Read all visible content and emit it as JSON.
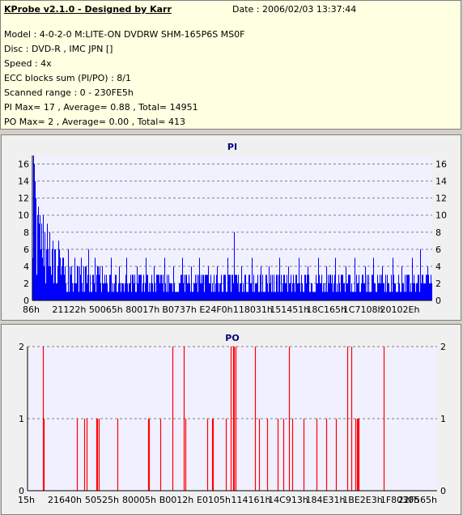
{
  "header": {
    "title": "KProbe v2.1.0 - Designed by Karr",
    "date": "Date : 2006/02/03 13:37:44",
    "lines": [
      "Model : 4-0-2-0 M:LITE-ON DVDRW SHM-165P6S MS0F",
      "Disc : DVD-R , IMC JPN []",
      "Speed : 4x",
      "ECC blocks sum (PI/PO) : 8/1",
      "Scanned range : 0 - 230FE5h",
      "PI Max= 17 , Average= 0.88 , Total= 14951",
      "PO Max= 2 , Average= 0.00 , Total= 413"
    ]
  },
  "colors": {
    "pi_bar": "#0000ff",
    "po_bar": "#ff0000",
    "plot_bg": "#f0f0ff",
    "title_color": "#000080",
    "grid": "#808080"
  },
  "chart_data": [
    {
      "type": "bar",
      "title": "PI",
      "x_ticks": [
        "86h",
        "21122h",
        "50065h",
        "80017h",
        "B0737h",
        "E24F0h",
        "118031h",
        "151451h",
        "18C165h",
        "1C7108h",
        "20102Eh"
      ],
      "y_ticks": [
        0,
        2,
        4,
        6,
        8,
        10,
        12,
        14,
        16
      ],
      "ylim": [
        0,
        17
      ],
      "xlim": [
        0,
        2297829
      ],
      "grid": true,
      "bands": [
        {
          "x0": 0,
          "x1": 45000,
          "ylow": 3,
          "yhigh": 10
        },
        {
          "x0": 45000,
          "x1": 180000,
          "ylow": 2,
          "yhigh": 6
        },
        {
          "x0": 180000,
          "x1": 390000,
          "ylow": 1,
          "yhigh": 4
        },
        {
          "x0": 390000,
          "x1": 1100000,
          "ylow": 1,
          "yhigh": 3
        },
        {
          "x0": 1100000,
          "x1": 2297829,
          "ylow": 1,
          "yhigh": 3
        }
      ],
      "spikes": [
        {
          "x": 2600,
          "y": 17
        },
        {
          "x": 9000,
          "y": 16
        },
        {
          "x": 14000,
          "y": 14
        },
        {
          "x": 20000,
          "y": 12
        },
        {
          "x": 26000,
          "y": 10
        },
        {
          "x": 33000,
          "y": 11
        },
        {
          "x": 52000,
          "y": 9
        },
        {
          "x": 60000,
          "y": 10
        },
        {
          "x": 72000,
          "y": 8
        },
        {
          "x": 84000,
          "y": 9
        },
        {
          "x": 100000,
          "y": 8
        },
        {
          "x": 115000,
          "y": 7
        },
        {
          "x": 130000,
          "y": 6
        },
        {
          "x": 150000,
          "y": 7
        },
        {
          "x": 175000,
          "y": 5
        },
        {
          "x": 205000,
          "y": 6
        },
        {
          "x": 240000,
          "y": 5
        },
        {
          "x": 280000,
          "y": 5
        },
        {
          "x": 320000,
          "y": 6
        },
        {
          "x": 360000,
          "y": 5
        },
        {
          "x": 400000,
          "y": 4
        },
        {
          "x": 450000,
          "y": 5
        },
        {
          "x": 500000,
          "y": 4
        },
        {
          "x": 540000,
          "y": 5
        },
        {
          "x": 600000,
          "y": 4
        },
        {
          "x": 650000,
          "y": 5
        },
        {
          "x": 700000,
          "y": 4
        },
        {
          "x": 760000,
          "y": 5
        },
        {
          "x": 810000,
          "y": 4
        },
        {
          "x": 860000,
          "y": 5
        },
        {
          "x": 910000,
          "y": 4
        },
        {
          "x": 960000,
          "y": 5
        },
        {
          "x": 1010000,
          "y": 4
        },
        {
          "x": 1060000,
          "y": 4
        },
        {
          "x": 1120000,
          "y": 5
        },
        {
          "x": 1160000,
          "y": 8
        },
        {
          "x": 1200000,
          "y": 4
        },
        {
          "x": 1260000,
          "y": 5
        },
        {
          "x": 1310000,
          "y": 4
        },
        {
          "x": 1360000,
          "y": 4
        },
        {
          "x": 1420000,
          "y": 5
        },
        {
          "x": 1470000,
          "y": 4
        },
        {
          "x": 1530000,
          "y": 5
        },
        {
          "x": 1580000,
          "y": 4
        },
        {
          "x": 1640000,
          "y": 5
        },
        {
          "x": 1690000,
          "y": 4
        },
        {
          "x": 1740000,
          "y": 5
        },
        {
          "x": 1800000,
          "y": 4
        },
        {
          "x": 1850000,
          "y": 5
        },
        {
          "x": 1910000,
          "y": 4
        },
        {
          "x": 1960000,
          "y": 5
        },
        {
          "x": 2010000,
          "y": 4
        },
        {
          "x": 2070000,
          "y": 5
        },
        {
          "x": 2120000,
          "y": 4
        },
        {
          "x": 2180000,
          "y": 5
        },
        {
          "x": 2230000,
          "y": 6
        },
        {
          "x": 2270000,
          "y": 4
        }
      ]
    },
    {
      "type": "bar",
      "title": "PO",
      "x_ticks": [
        "15h",
        "21640h",
        "50525h",
        "80005h",
        "B0012h",
        "E0105h",
        "114161h",
        "14C913h",
        "184E31h",
        "1BE2E3h",
        "1F8030h",
        "22F565h"
      ],
      "y_ticks": [
        0,
        1,
        2
      ],
      "ylim": [
        0,
        2
      ],
      "xlim": [
        0,
        2297829
      ],
      "grid": true,
      "points": [
        {
          "x": 88000,
          "y": 2
        },
        {
          "x": 90000,
          "y": 1
        },
        {
          "x": 276000,
          "y": 1
        },
        {
          "x": 320000,
          "y": 1
        },
        {
          "x": 330000,
          "y": 1
        },
        {
          "x": 386000,
          "y": 1
        },
        {
          "x": 392000,
          "y": 1
        },
        {
          "x": 398000,
          "y": 1
        },
        {
          "x": 502000,
          "y": 1
        },
        {
          "x": 676000,
          "y": 1
        },
        {
          "x": 683000,
          "y": 1
        },
        {
          "x": 746000,
          "y": 1
        },
        {
          "x": 811000,
          "y": 2
        },
        {
          "x": 877000,
          "y": 2
        },
        {
          "x": 884000,
          "y": 1
        },
        {
          "x": 1006000,
          "y": 1
        },
        {
          "x": 1034000,
          "y": 1
        },
        {
          "x": 1040000,
          "y": 1
        },
        {
          "x": 1111000,
          "y": 1
        },
        {
          "x": 1138000,
          "y": 2
        },
        {
          "x": 1152000,
          "y": 2
        },
        {
          "x": 1159000,
          "y": 2
        },
        {
          "x": 1166000,
          "y": 2
        },
        {
          "x": 1276000,
          "y": 2
        },
        {
          "x": 1301000,
          "y": 1
        },
        {
          "x": 1345000,
          "y": 1
        },
        {
          "x": 1402000,
          "y": 1
        },
        {
          "x": 1436000,
          "y": 1
        },
        {
          "x": 1468000,
          "y": 2
        },
        {
          "x": 1487000,
          "y": 1
        },
        {
          "x": 1548000,
          "y": 1
        },
        {
          "x": 1619000,
          "y": 1
        },
        {
          "x": 1675000,
          "y": 1
        },
        {
          "x": 1730000,
          "y": 1
        },
        {
          "x": 1794000,
          "y": 2
        },
        {
          "x": 1818000,
          "y": 2
        },
        {
          "x": 1838000,
          "y": 1
        },
        {
          "x": 1850000,
          "y": 1
        },
        {
          "x": 1854000,
          "y": 1
        },
        {
          "x": 1858000,
          "y": 1
        },
        {
          "x": 1999000,
          "y": 2
        }
      ]
    }
  ]
}
